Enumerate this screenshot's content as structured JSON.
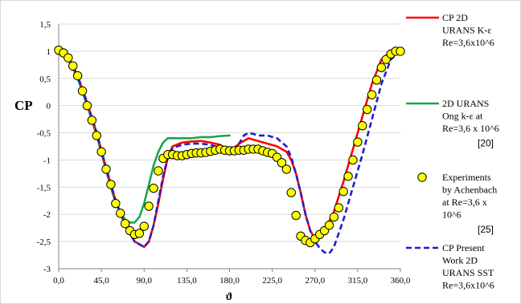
{
  "chart_data": {
    "type": "line",
    "xlabel": "ϑ",
    "ylabel": "CP",
    "xlim": [
      0,
      360
    ],
    "ylim": [
      -3,
      1.5
    ],
    "x_ticks": [
      0,
      45,
      90,
      135,
      180,
      225,
      270,
      315,
      360
    ],
    "x_tick_labels": [
      "0,0",
      "45,0",
      "90,0",
      "135,0",
      "180,0",
      "225,0",
      "270,0",
      "315,0",
      "360,0"
    ],
    "y_ticks": [
      1.5,
      1,
      0.5,
      0,
      -0.5,
      -1,
      -1.5,
      -2,
      -2.5,
      -3
    ],
    "y_tick_labels": [
      "1,5",
      "1",
      "0,5",
      "0",
      "-0,5",
      "-1",
      "-1,5",
      "-2",
      "-2,5",
      "-3"
    ],
    "grid": "horizontal",
    "legend_position": "right",
    "series": [
      {
        "name_lines": [
          "CP 2D",
          "URANS K-ε",
          "Re=3,6x10^6"
        ],
        "color": "#ff0000",
        "style": "solid",
        "x": [
          0,
          10,
          20,
          30,
          40,
          50,
          60,
          70,
          80,
          90,
          95,
          100,
          105,
          110,
          115,
          120,
          130,
          140,
          150,
          160,
          170,
          180,
          190,
          200,
          210,
          220,
          230,
          240,
          245,
          250,
          255,
          260,
          265,
          270,
          275,
          280,
          290,
          300,
          310,
          320,
          330,
          340,
          350,
          360
        ],
        "y": [
          1.0,
          0.9,
          0.55,
          0.05,
          -0.5,
          -1.15,
          -1.75,
          -2.2,
          -2.5,
          -2.6,
          -2.5,
          -2.2,
          -1.8,
          -1.35,
          -0.95,
          -0.75,
          -0.68,
          -0.66,
          -0.65,
          -0.68,
          -0.72,
          -0.85,
          -0.7,
          -0.6,
          -0.65,
          -0.7,
          -0.75,
          -0.85,
          -1.0,
          -1.25,
          -1.6,
          -2.0,
          -2.3,
          -2.45,
          -2.4,
          -2.3,
          -1.95,
          -1.4,
          -0.8,
          -0.2,
          0.4,
          0.85,
          1.0,
          1.0
        ]
      },
      {
        "name_lines": [
          "2D URANS",
          "Ong k-ε at",
          "Re=3,6 x 10^6"
        ],
        "ref": "[20]",
        "color": "#18a84a",
        "style": "solid",
        "x": [
          0,
          10,
          20,
          30,
          40,
          50,
          60,
          70,
          75,
          80,
          85,
          90,
          95,
          100,
          105,
          110,
          115,
          120,
          130,
          140,
          150,
          160,
          170,
          180
        ],
        "y": [
          1.0,
          0.85,
          0.5,
          0.0,
          -0.55,
          -1.2,
          -1.8,
          -2.1,
          -2.15,
          -2.15,
          -2.05,
          -1.8,
          -1.45,
          -1.1,
          -0.85,
          -0.68,
          -0.6,
          -0.6,
          -0.6,
          -0.6,
          -0.58,
          -0.58,
          -0.56,
          -0.55
        ]
      },
      {
        "name_lines": [
          "Experiments",
          "by Achenbach",
          "at Re=3,6 x",
          "10^6"
        ],
        "ref": "[25]",
        "color": "#ffff00",
        "marker": "circle",
        "x": [
          0,
          5,
          10,
          15,
          20,
          25,
          30,
          35,
          40,
          45,
          50,
          55,
          60,
          65,
          70,
          75,
          80,
          85,
          90,
          95,
          100,
          105,
          110,
          115,
          120,
          125,
          130,
          135,
          140,
          145,
          150,
          155,
          160,
          165,
          170,
          175,
          180,
          185,
          190,
          195,
          200,
          205,
          210,
          215,
          220,
          225,
          230,
          235,
          240,
          245,
          250,
          255,
          260,
          265,
          270,
          275,
          280,
          285,
          290,
          295,
          300,
          305,
          310,
          315,
          320,
          325,
          330,
          335,
          340,
          345,
          350,
          355,
          360
        ],
        "y": [
          1.02,
          0.97,
          0.88,
          0.73,
          0.55,
          0.27,
          0.0,
          -0.27,
          -0.55,
          -0.85,
          -1.17,
          -1.45,
          -1.8,
          -1.98,
          -2.17,
          -2.3,
          -2.37,
          -2.35,
          -2.22,
          -1.85,
          -1.52,
          -1.2,
          -0.97,
          -0.9,
          -0.9,
          -0.92,
          -0.92,
          -0.9,
          -0.88,
          -0.87,
          -0.87,
          -0.86,
          -0.84,
          -0.82,
          -0.8,
          -0.82,
          -0.83,
          -0.83,
          -0.82,
          -0.82,
          -0.8,
          -0.8,
          -0.8,
          -0.83,
          -0.86,
          -0.88,
          -0.95,
          -1.05,
          -1.17,
          -1.6,
          -2.02,
          -2.4,
          -2.48,
          -2.52,
          -2.45,
          -2.37,
          -2.3,
          -2.2,
          -2.05,
          -1.88,
          -1.58,
          -1.3,
          -1.0,
          -0.67,
          -0.37,
          -0.07,
          0.2,
          0.47,
          0.7,
          0.85,
          0.95,
          1.0,
          1.0
        ]
      },
      {
        "name_lines": [
          "CP Present",
          "Work 2D",
          "URANS SST",
          "Re=3,6x10^6"
        ],
        "color": "#1f1fcc",
        "style": "dashed",
        "x": [
          0,
          10,
          20,
          30,
          40,
          50,
          60,
          70,
          80,
          90,
          95,
          100,
          105,
          110,
          115,
          120,
          130,
          140,
          150,
          160,
          170,
          175,
          180,
          185,
          190,
          195,
          200,
          205,
          210,
          220,
          230,
          240,
          245,
          250,
          255,
          260,
          265,
          270,
          275,
          280,
          285,
          290,
          300,
          310,
          320,
          330,
          340,
          350,
          360
        ],
        "y": [
          1.0,
          0.9,
          0.55,
          0.05,
          -0.5,
          -1.15,
          -1.75,
          -2.2,
          -2.5,
          -2.6,
          -2.5,
          -2.2,
          -1.75,
          -1.3,
          -0.95,
          -0.78,
          -0.72,
          -0.7,
          -0.7,
          -0.72,
          -0.78,
          -0.85,
          -0.9,
          -0.85,
          -0.7,
          -0.55,
          -0.5,
          -0.52,
          -0.55,
          -0.55,
          -0.6,
          -0.75,
          -0.95,
          -1.25,
          -1.6,
          -2.0,
          -2.3,
          -2.5,
          -2.62,
          -2.7,
          -2.72,
          -2.6,
          -2.1,
          -1.5,
          -0.9,
          -0.25,
          0.4,
          0.85,
          1.0
        ]
      }
    ]
  }
}
